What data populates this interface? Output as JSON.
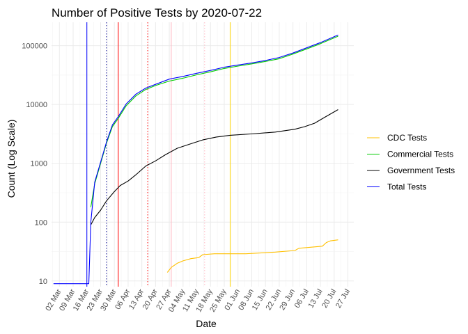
{
  "chart_data": {
    "type": "line",
    "title": "Number of Positive Tests by  2020-07-22",
    "xlabel": "Date",
    "ylabel": "Count (Log Scale)",
    "y_scale": "log10",
    "ylim": [
      8,
      250000
    ],
    "xlim": [
      "2020-02-27",
      "2020-07-30"
    ],
    "grid": true,
    "legend_position": "right",
    "x_tick_labels": [
      "02 Mar",
      "09 Mar",
      "16 Mar",
      "23 Mar",
      "30 Mar",
      "06 Apr",
      "13 Apr",
      "20 Apr",
      "27 Apr",
      "04 May",
      "11 May",
      "18 May",
      "25 May",
      "01 Jun",
      "08 Jun",
      "15 Jun",
      "22 Jun",
      "29 Jun",
      "06 Jul",
      "13 Jul",
      "20 Jul",
      "27 Jul"
    ],
    "x_tick_dates": [
      "2020-03-02",
      "2020-03-09",
      "2020-03-16",
      "2020-03-23",
      "2020-03-30",
      "2020-04-06",
      "2020-04-13",
      "2020-04-20",
      "2020-04-27",
      "2020-05-04",
      "2020-05-11",
      "2020-05-18",
      "2020-05-25",
      "2020-06-01",
      "2020-06-08",
      "2020-06-15",
      "2020-06-22",
      "2020-06-29",
      "2020-07-06",
      "2020-07-13",
      "2020-07-20",
      "2020-07-27"
    ],
    "y_ticks": [
      10,
      100,
      1000,
      10000,
      100000
    ],
    "y_tick_labels": [
      "10",
      "100",
      "1000",
      "10000",
      "100000"
    ],
    "vlines": [
      {
        "x": "2020-03-16",
        "color": "#0000ff",
        "style": "solid"
      },
      {
        "x": "2020-03-26",
        "color": "#00008b",
        "style": "dotted"
      },
      {
        "x": "2020-04-01",
        "color": "#ff0000",
        "style": "solid"
      },
      {
        "x": "2020-04-16",
        "color": "#ff0000",
        "style": "dotted"
      },
      {
        "x": "2020-04-28",
        "color": "#ffb6c1",
        "style": "solid"
      },
      {
        "x": "2020-05-15",
        "color": "#ffb6c1",
        "style": "dotted"
      },
      {
        "x": "2020-05-28",
        "color": "#ffd700",
        "style": "solid"
      }
    ],
    "series": [
      {
        "name": "CDC Tests",
        "color": "#ffc000",
        "points": [
          [
            "2020-04-26",
            14
          ],
          [
            "2020-04-28",
            17
          ],
          [
            "2020-05-01",
            20
          ],
          [
            "2020-05-04",
            22
          ],
          [
            "2020-05-08",
            24
          ],
          [
            "2020-05-12",
            25
          ],
          [
            "2020-05-14",
            28
          ],
          [
            "2020-05-20",
            29
          ],
          [
            "2020-06-05",
            29
          ],
          [
            "2020-06-20",
            31
          ],
          [
            "2020-06-30",
            33
          ],
          [
            "2020-07-02",
            36
          ],
          [
            "2020-07-10",
            38
          ],
          [
            "2020-07-14",
            39
          ],
          [
            "2020-07-16",
            45
          ],
          [
            "2020-07-18",
            48
          ],
          [
            "2020-07-22",
            50
          ]
        ]
      },
      {
        "name": "Commercial Tests",
        "color": "#00cc00",
        "points": [
          [
            "2020-03-18",
            180
          ],
          [
            "2020-03-20",
            450
          ],
          [
            "2020-03-23",
            1000
          ],
          [
            "2020-03-26",
            2200
          ],
          [
            "2020-03-29",
            4200
          ],
          [
            "2020-04-01",
            5800
          ],
          [
            "2020-04-05",
            9500
          ],
          [
            "2020-04-10",
            14000
          ],
          [
            "2020-04-15",
            18000
          ],
          [
            "2020-04-20",
            21000
          ],
          [
            "2020-04-27",
            25000
          ],
          [
            "2020-05-04",
            28000
          ],
          [
            "2020-05-11",
            32000
          ],
          [
            "2020-05-18",
            36000
          ],
          [
            "2020-05-25",
            41000
          ],
          [
            "2020-06-01",
            45000
          ],
          [
            "2020-06-08",
            49000
          ],
          [
            "2020-06-15",
            54000
          ],
          [
            "2020-06-22",
            60000
          ],
          [
            "2020-06-29",
            72000
          ],
          [
            "2020-07-06",
            88000
          ],
          [
            "2020-07-13",
            108000
          ],
          [
            "2020-07-22",
            145000
          ]
        ]
      },
      {
        "name": "Government Tests",
        "color": "#000000",
        "points": [
          [
            "2020-03-18",
            90
          ],
          [
            "2020-03-20",
            120
          ],
          [
            "2020-03-23",
            160
          ],
          [
            "2020-03-26",
            230
          ],
          [
            "2020-03-30",
            330
          ],
          [
            "2020-04-02",
            420
          ],
          [
            "2020-04-06",
            500
          ],
          [
            "2020-04-10",
            640
          ],
          [
            "2020-04-15",
            900
          ],
          [
            "2020-04-20",
            1100
          ],
          [
            "2020-04-25",
            1400
          ],
          [
            "2020-05-01",
            1800
          ],
          [
            "2020-05-07",
            2100
          ],
          [
            "2020-05-14",
            2500
          ],
          [
            "2020-05-21",
            2800
          ],
          [
            "2020-05-28",
            3000
          ],
          [
            "2020-06-10",
            3200
          ],
          [
            "2020-06-20",
            3400
          ],
          [
            "2020-06-30",
            3800
          ],
          [
            "2020-07-05",
            4200
          ],
          [
            "2020-07-10",
            4800
          ],
          [
            "2020-07-15",
            6000
          ],
          [
            "2020-07-22",
            8200
          ]
        ]
      },
      {
        "name": "Total Tests",
        "color": "#0000ff",
        "points": [
          [
            "2020-02-28",
            9
          ],
          [
            "2020-03-17",
            9
          ],
          [
            "2020-03-18",
            100
          ],
          [
            "2020-03-20",
            480
          ],
          [
            "2020-03-23",
            1050
          ],
          [
            "2020-03-26",
            2300
          ],
          [
            "2020-03-29",
            4500
          ],
          [
            "2020-04-01",
            6200
          ],
          [
            "2020-04-05",
            10200
          ],
          [
            "2020-04-10",
            15000
          ],
          [
            "2020-04-15",
            19000
          ],
          [
            "2020-04-20",
            22000
          ],
          [
            "2020-04-27",
            27000
          ],
          [
            "2020-05-04",
            30000
          ],
          [
            "2020-05-11",
            34000
          ],
          [
            "2020-05-18",
            38000
          ],
          [
            "2020-05-25",
            43000
          ],
          [
            "2020-06-01",
            47000
          ],
          [
            "2020-06-08",
            51000
          ],
          [
            "2020-06-15",
            56000
          ],
          [
            "2020-06-22",
            63000
          ],
          [
            "2020-06-29",
            75000
          ],
          [
            "2020-07-06",
            92000
          ],
          [
            "2020-07-13",
            113000
          ],
          [
            "2020-07-22",
            152000
          ]
        ]
      }
    ]
  }
}
